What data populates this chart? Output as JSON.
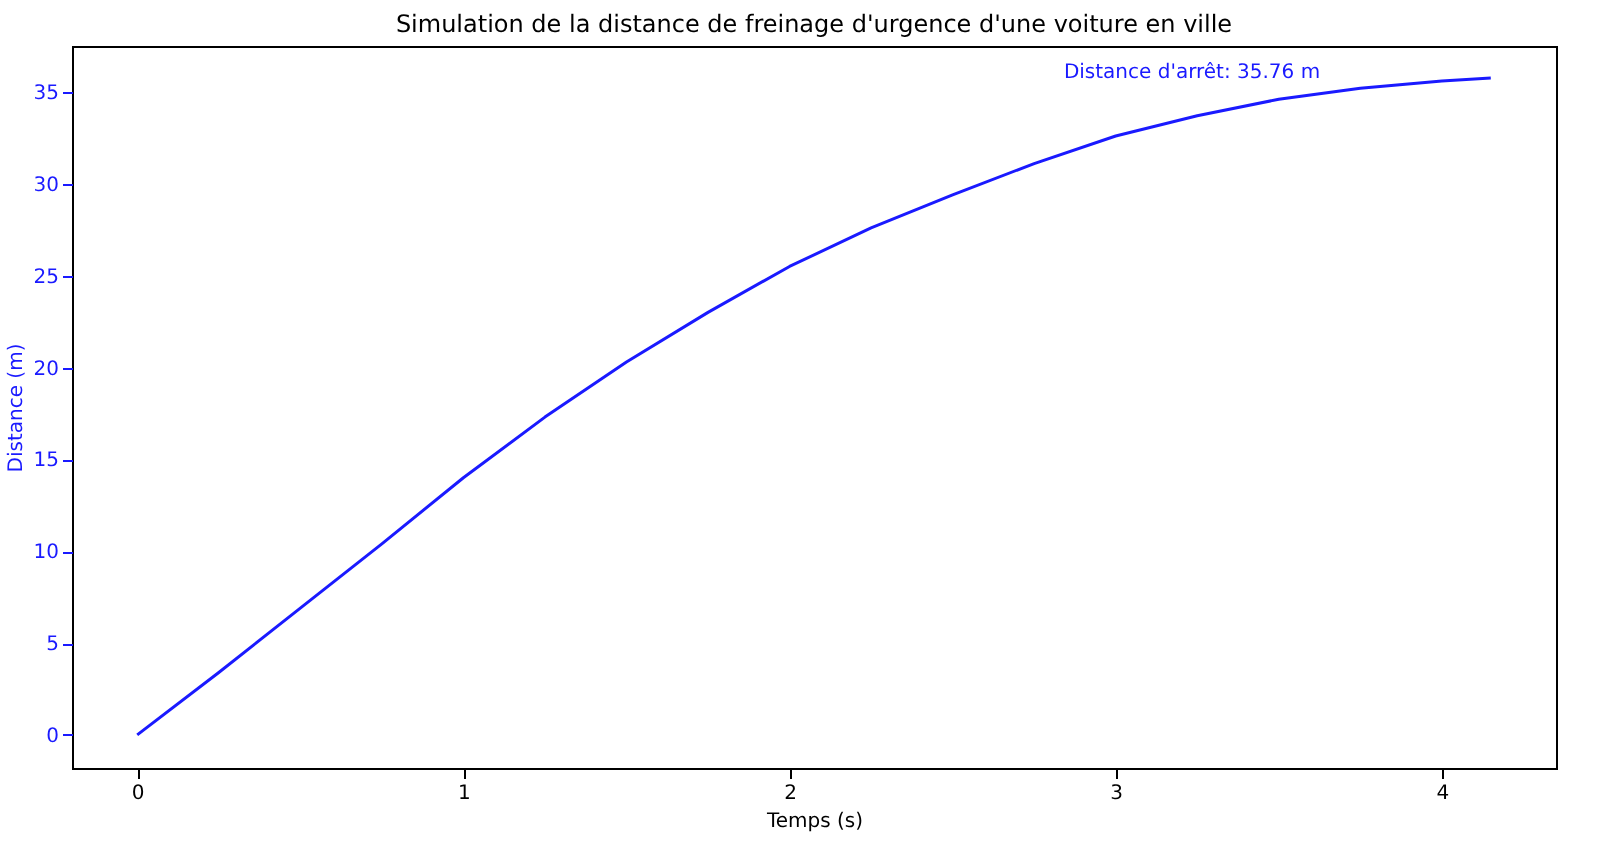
{
  "chart_data": {
    "type": "line",
    "title": "Simulation de la distance de freinage d'urgence d'une voiture en ville",
    "xlabel": "Temps (s)",
    "ylabel": "Distance (m)",
    "x": [
      0,
      0.25,
      0.5,
      0.75,
      1,
      1.25,
      1.5,
      1.75,
      2,
      2.25,
      2.5,
      2.75,
      3,
      3.25,
      3.5,
      3.75,
      4,
      4.15
    ],
    "series": [
      {
        "color": "#1a1aff",
        "values": [
          0,
          3.4,
          6.9,
          10.4,
          14.0,
          17.3,
          20.3,
          23.0,
          25.5,
          27.6,
          29.4,
          31.1,
          32.6,
          33.7,
          34.6,
          35.2,
          35.6,
          35.76
        ]
      }
    ],
    "xlim": [
      -0.2,
      4.35
    ],
    "ylim": [
      -1.8,
      37.5
    ],
    "xticks": [
      0,
      1,
      2,
      3,
      4
    ],
    "yticks": [
      0,
      5,
      10,
      15,
      20,
      25,
      30,
      35
    ],
    "annotations": [
      "Distance d'arrêt: 35.76 m"
    ],
    "grid": false,
    "marker": "none",
    "line_style": "solid"
  }
}
